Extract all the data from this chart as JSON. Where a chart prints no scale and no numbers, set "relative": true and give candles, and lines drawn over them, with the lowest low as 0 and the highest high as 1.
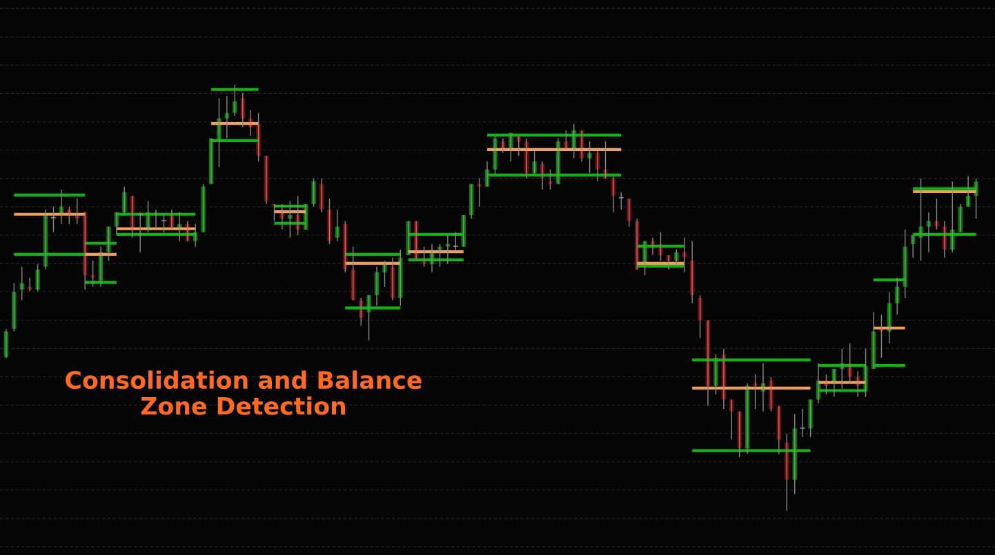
{
  "chart_data": {
    "type": "candlestick",
    "relative": true,
    "title": "Consolidation and Balance\nZone Detection",
    "grid": "y",
    "categories": [
      null,
      null,
      null,
      null,
      null,
      null,
      null,
      null,
      null,
      null,
      null,
      null,
      null,
      null,
      null,
      null,
      null,
      null,
      null,
      null,
      null,
      null,
      null,
      null,
      null,
      null,
      null,
      null,
      null,
      null,
      null,
      null,
      null,
      null,
      null,
      null,
      null,
      null,
      null,
      null,
      null,
      null,
      null,
      null,
      null,
      null,
      null,
      null,
      null,
      null,
      null,
      null,
      null,
      null,
      null,
      null,
      null,
      null,
      null,
      null,
      null,
      null,
      null,
      null,
      null,
      null,
      null,
      null,
      null,
      null,
      null,
      null,
      null,
      null,
      null,
      null,
      null,
      null,
      null,
      null,
      null,
      null,
      null,
      null,
      null,
      null,
      null,
      null,
      null,
      null,
      null,
      null,
      null,
      null,
      null,
      null,
      null,
      null,
      null,
      null,
      null,
      null,
      null,
      null,
      null,
      null,
      null,
      null,
      null,
      null,
      null,
      null,
      null,
      null,
      null,
      null,
      null,
      null,
      null,
      null,
      null,
      null,
      null,
      null
    ],
    "ohlc": [
      [
        0.361,
        0.427,
        0.358,
        0.421
      ],
      [
        0.427,
        0.534,
        0.421,
        0.513
      ],
      [
        0.519,
        0.573,
        0.494,
        0.534
      ],
      [
        0.526,
        0.547,
        0.515,
        0.519
      ],
      [
        0.519,
        0.579,
        0.515,
        0.566
      ],
      [
        0.573,
        0.707,
        0.566,
        0.694
      ],
      [
        0.688,
        0.714,
        0.654,
        0.688
      ],
      [
        0.697,
        0.754,
        0.673,
        0.714
      ],
      [
        0.707,
        0.714,
        0.673,
        0.697
      ],
      [
        0.697,
        0.733,
        0.673,
        0.686
      ],
      [
        0.701,
        0.701,
        0.519,
        0.553
      ],
      [
        0.553,
        0.587,
        0.526,
        0.547
      ],
      [
        0.54,
        0.62,
        0.526,
        0.607
      ],
      [
        0.607,
        0.667,
        0.587,
        0.667
      ],
      [
        0.667,
        0.701,
        0.649,
        0.701
      ],
      [
        0.701,
        0.761,
        0.697,
        0.748
      ],
      [
        0.739,
        0.739,
        0.641,
        0.663
      ],
      [
        0.696,
        0.701,
        0.607,
        0.696
      ],
      [
        0.663,
        0.727,
        0.654,
        0.701
      ],
      [
        0.701,
        0.707,
        0.662,
        0.696
      ],
      [
        0.681,
        0.696,
        0.654,
        0.681
      ],
      [
        0.694,
        0.707,
        0.662,
        0.663
      ],
      [
        0.663,
        0.701,
        0.633,
        0.673
      ],
      [
        0.673,
        0.68,
        0.633,
        0.633
      ],
      [
        0.633,
        0.673,
        0.62,
        0.654
      ],
      [
        0.654,
        0.767,
        0.654,
        0.761
      ],
      [
        0.767,
        0.874,
        0.767,
        0.874
      ],
      [
        0.869,
        0.968,
        0.807,
        0.921
      ],
      [
        0.921,
        0.974,
        0.874,
        0.934
      ],
      [
        0.934,
        1,
        0.927,
        0.961
      ],
      [
        0.968,
        0.981,
        0.9,
        0.921
      ],
      [
        0.921,
        0.94,
        0.88,
        0.9
      ],
      [
        0.908,
        0.934,
        0.82,
        0.833
      ],
      [
        0.833,
        0.833,
        0.72,
        0.727
      ],
      [
        0.72,
        0.72,
        0.68,
        0.715
      ],
      [
        0.707,
        0.72,
        0.66,
        0.686
      ],
      [
        0.686,
        0.727,
        0.641,
        0.694
      ],
      [
        0.694,
        0.739,
        0.647,
        0.66
      ],
      [
        0.66,
        0.72,
        0.66,
        0.72
      ],
      [
        0.72,
        0.78,
        0.714,
        0.773
      ],
      [
        0.767,
        0.78,
        0.701,
        0.707
      ],
      [
        0.707,
        0.733,
        0.626,
        0.633
      ],
      [
        0.641,
        0.707,
        0.633,
        0.667
      ],
      [
        0.673,
        0.68,
        0.56,
        0.566
      ],
      [
        0.566,
        0.62,
        0.494,
        0.494
      ],
      [
        0.494,
        0.5,
        0.434,
        0.453
      ],
      [
        0.466,
        0.506,
        0.4,
        0.506
      ],
      [
        0.506,
        0.573,
        0.481,
        0.56
      ],
      [
        0.56,
        0.587,
        0.526,
        0.581
      ],
      [
        0.573,
        0.594,
        0.494,
        0.5
      ],
      [
        0.5,
        0.613,
        0.481,
        0.594
      ],
      [
        0.6,
        0.68,
        0.6,
        0.68
      ],
      [
        0.68,
        0.68,
        0.591,
        0.591
      ],
      [
        0.586,
        0.62,
        0.573,
        0.579
      ],
      [
        0.579,
        0.626,
        0.56,
        0.613
      ],
      [
        0.613,
        0.626,
        0.573,
        0.62
      ],
      [
        0.62,
        0.646,
        0.579,
        0.626
      ],
      [
        0.621,
        0.654,
        0.61,
        0.621
      ],
      [
        0.62,
        0.694,
        0.62,
        0.694
      ],
      [
        0.694,
        0.767,
        0.686,
        0.767
      ],
      [
        0.767,
        0.78,
        0.714,
        0.761
      ],
      [
        0.761,
        0.82,
        0.761,
        0.801
      ],
      [
        0.801,
        0.879,
        0.79,
        0.874
      ],
      [
        0.867,
        0.874,
        0.84,
        0.85
      ],
      [
        0.85,
        0.887,
        0.82,
        0.887
      ],
      [
        0.879,
        0.879,
        0.833,
        0.867
      ],
      [
        0.867,
        0.874,
        0.78,
        0.793
      ],
      [
        0.793,
        0.845,
        0.79,
        0.82
      ],
      [
        0.814,
        0.82,
        0.754,
        0.78
      ],
      [
        0.773,
        0.801,
        0.754,
        0.767
      ],
      [
        0.767,
        0.874,
        0.767,
        0.867
      ],
      [
        0.867,
        0.893,
        0.85,
        0.85
      ],
      [
        0.85,
        0.908,
        0.827,
        0.893
      ],
      [
        0.893,
        0.893,
        0.82,
        0.827
      ],
      [
        0.827,
        0.867,
        0.793,
        0.84
      ],
      [
        0.84,
        0.845,
        0.773,
        0.801
      ],
      [
        0.801,
        0.867,
        0.78,
        0.78
      ],
      [
        0.78,
        0.785,
        0.701,
        0.739
      ],
      [
        0.735,
        0.748,
        0.707,
        0.735
      ],
      [
        0.733,
        0.733,
        0.667,
        0.68
      ],
      [
        0.68,
        0.686,
        0.566,
        0.566
      ],
      [
        0.574,
        0.633,
        0.553,
        0.633
      ],
      [
        0.633,
        0.641,
        0.6,
        0.623
      ],
      [
        0.626,
        0.654,
        0.587,
        0.6
      ],
      [
        0.6,
        0.6,
        0.566,
        0.587
      ],
      [
        0.587,
        0.613,
        0.576,
        0.607
      ],
      [
        0.607,
        0.641,
        0.56,
        0.594
      ],
      [
        0.587,
        0.633,
        0.487,
        0.506
      ],
      [
        0.5,
        0.506,
        0.406,
        0.447
      ],
      [
        0.447,
        0.447,
        0.246,
        0.293
      ],
      [
        0.293,
        0.367,
        0.273,
        0.359
      ],
      [
        0.367,
        0.38,
        0.239,
        0.261
      ],
      [
        0.261,
        0.261,
        0.167,
        0.233
      ],
      [
        0.233,
        0.233,
        0.126,
        0.146
      ],
      [
        0.146,
        0.299,
        0.133,
        0.293
      ],
      [
        0.299,
        0.32,
        0.239,
        0.293
      ],
      [
        0.28,
        0.346,
        0.233,
        0.299
      ],
      [
        0.306,
        0.314,
        0.233,
        0.239
      ],
      [
        0.246,
        0.246,
        0.133,
        0.167
      ],
      [
        0.16,
        0.18,
        0,
        0.073
      ],
      [
        0.073,
        0.227,
        0.039,
        0.193
      ],
      [
        0.194,
        0.239,
        0.173,
        0.194
      ],
      [
        0.193,
        0.261,
        0.173,
        0.261
      ],
      [
        0.261,
        0.346,
        0.252,
        0.306
      ],
      [
        0.306,
        0.32,
        0.273,
        0.293
      ],
      [
        0.298,
        0.333,
        0.267,
        0.333
      ],
      [
        0.333,
        0.38,
        0.286,
        0.346
      ],
      [
        0.346,
        0.393,
        0.299,
        0.314
      ],
      [
        0.314,
        0.327,
        0.267,
        0.293
      ],
      [
        0.28,
        0.38,
        0.267,
        0.34
      ],
      [
        0.333,
        0.466,
        0.333,
        0.421
      ],
      [
        0.427,
        0.46,
        0.359,
        0.421
      ],
      [
        0.421,
        0.513,
        0.393,
        0.487
      ],
      [
        0.487,
        0.547,
        0.46,
        0.526
      ],
      [
        0.526,
        0.66,
        0.5,
        0.62
      ],
      [
        0.626,
        0.647,
        0.594,
        0.647
      ],
      [
        0.641,
        0.78,
        0.587,
        0.667
      ],
      [
        0.667,
        0.701,
        0.607,
        0.68
      ],
      [
        0.68,
        0.733,
        0.66,
        0.667
      ],
      [
        0.667,
        0.68,
        0.594,
        0.613
      ],
      [
        0.613,
        0.773,
        0.607,
        0.66
      ],
      [
        0.654,
        0.72,
        0.654,
        0.714
      ],
      [
        0.714,
        0.786,
        0.714,
        0.739
      ],
      [
        0.739,
        0.78,
        0.686,
        0.773
      ]
    ],
    "colors": [
      "#088008",
      "#088008",
      "#088008",
      "#800808",
      "#088008",
      "#088008",
      "#808080",
      "#088008",
      "#800808",
      "#800808",
      "#800808",
      "#800808",
      "#088008",
      "#088008",
      "#088008",
      "#088008",
      "#800808",
      "#808080",
      "#088008",
      "#800808",
      "#808080",
      "#800808",
      "#088008",
      "#800808",
      "#088008",
      "#088008",
      "#088008",
      "#088008",
      "#088008",
      "#088008",
      "#800808",
      "#800808",
      "#800808",
      "#800808",
      "#800808",
      "#800808",
      "#088008",
      "#800808",
      "#088008",
      "#088008",
      "#800808",
      "#800808",
      "#088008",
      "#800808",
      "#800808",
      "#800808",
      "#088008",
      "#088008",
      "#088008",
      "#800808",
      "#088008",
      "#088008",
      "#800808",
      "#800808",
      "#088008",
      "#088008",
      "#088008",
      "#808080",
      "#088008",
      "#088008",
      "#800808",
      "#088008",
      "#088008",
      "#800808",
      "#088008",
      "#800808",
      "#800808",
      "#088008",
      "#800808",
      "#800808",
      "#088008",
      "#800808",
      "#088008",
      "#800808",
      "#088008",
      "#800808",
      "#800808",
      "#800808",
      "#808080",
      "#800808",
      "#800808",
      "#088008",
      "#800808",
      "#800808",
      "#800808",
      "#088008",
      "#800808",
      "#800808",
      "#800808",
      "#800808",
      "#088008",
      "#800808",
      "#800808",
      "#800808",
      "#088008",
      "#800808",
      "#088008",
      "#800808",
      "#800808",
      "#800808",
      "#088008",
      "#808080",
      "#088008",
      "#088008",
      "#800808",
      "#088008",
      "#088008",
      "#800808",
      "#800808",
      "#088008",
      "#088008",
      "#800808",
      "#088008",
      "#088008",
      "#088008",
      "#088008",
      "#088008",
      "#088008",
      "#800808",
      "#800808",
      "#088008",
      "#088008",
      "#088008",
      "#088008"
    ],
    "series": [
      {
        "type": "line",
        "color": "#10b410",
        "values": [
          null,
          0.741,
          0.741,
          0.741,
          0.741,
          0.741,
          0.741,
          0.741,
          0.741,
          0.741,
          0.741,
          null,
          null,
          null,
          0.696,
          0.696,
          0.696,
          0.696,
          0.696,
          0.696,
          0.696,
          0.696,
          0.696,
          0.696,
          0.696,
          null,
          null,
          null,
          null,
          null,
          null,
          null,
          null,
          null,
          0.715,
          0.715,
          0.715,
          0.715,
          0.715,
          null,
          null,
          null,
          null,
          null,
          null,
          null,
          null,
          null,
          null,
          null,
          null,
          0.649,
          0.649,
          0.649,
          0.649,
          0.649,
          0.649,
          0.649,
          0.649,
          null,
          null,
          null,
          null,
          null,
          null,
          null,
          null,
          null,
          null,
          null,
          null,
          null,
          null,
          null,
          null,
          null,
          null,
          null,
          null,
          null,
          0.621,
          0.621,
          0.621,
          0.621,
          0.621,
          0.621,
          0.621,
          null,
          null,
          null,
          null,
          null,
          null,
          null,
          null,
          null,
          null,
          null,
          null,
          null,
          null,
          null,
          null,
          0.341,
          0.341,
          0.341,
          0.341,
          0.341,
          0.341,
          0.341,
          null,
          null,
          null,
          null,
          null,
          0.756,
          0.756,
          0.756,
          0.756,
          0.756,
          0.756,
          0.756,
          0.756,
          0.756
        ]
      },
      {
        "type": "line",
        "color": "#f0a05a",
        "values": [
          null,
          0.696,
          0.696,
          0.696,
          0.696,
          0.696,
          0.696,
          0.696,
          0.696,
          0.696,
          0.696,
          null,
          null,
          null,
          0.662,
          0.662,
          0.662,
          0.662,
          0.662,
          0.662,
          0.662,
          0.662,
          0.662,
          0.662,
          0.662,
          null,
          null,
          null,
          null,
          null,
          null,
          null,
          null,
          null,
          0.702,
          0.702,
          0.702,
          0.702,
          0.702,
          null,
          null,
          null,
          null,
          null,
          null,
          null,
          null,
          null,
          null,
          null,
          null,
          0.608,
          0.608,
          0.608,
          0.608,
          0.608,
          0.608,
          0.608,
          0.608,
          null,
          null,
          null,
          null,
          null,
          null,
          null,
          null,
          null,
          null,
          null,
          null,
          null,
          null,
          null,
          null,
          null,
          null,
          null,
          null,
          null,
          0.581,
          0.581,
          0.581,
          0.581,
          0.581,
          0.581,
          0.581,
          null,
          null,
          null,
          null,
          null,
          null,
          null,
          null,
          null,
          null,
          null,
          null,
          null,
          null,
          null,
          null,
          0.301,
          0.301,
          0.301,
          0.301,
          0.301,
          0.301,
          0.301,
          null,
          null,
          null,
          null,
          null,
          0.749,
          0.749,
          0.749,
          0.749,
          0.749,
          0.749,
          0.749,
          0.749,
          0.749
        ]
      },
      {
        "type": "line",
        "color": "#10b410",
        "values": [
          null,
          0.602,
          0.602,
          0.602,
          0.602,
          0.602,
          0.602,
          0.602,
          0.602,
          0.602,
          0.602,
          null,
          null,
          null,
          0.649,
          0.649,
          0.649,
          0.649,
          0.649,
          0.649,
          0.649,
          0.649,
          0.649,
          0.649,
          0.649,
          null,
          null,
          null,
          null,
          null,
          null,
          null,
          null,
          null,
          0.675,
          0.675,
          0.675,
          0.675,
          0.675,
          null,
          null,
          null,
          null,
          null,
          null,
          null,
          null,
          null,
          null,
          null,
          null,
          0.589,
          0.589,
          0.589,
          0.589,
          0.589,
          0.589,
          0.589,
          0.589,
          null,
          null,
          null,
          null,
          null,
          null,
          null,
          null,
          null,
          null,
          null,
          null,
          null,
          null,
          null,
          null,
          null,
          null,
          null,
          null,
          null,
          0.574,
          0.574,
          0.574,
          0.574,
          0.574,
          0.574,
          0.574,
          null,
          null,
          null,
          null,
          null,
          null,
          null,
          null,
          null,
          null,
          null,
          null,
          null,
          null,
          null,
          null,
          0.282,
          0.282,
          0.282,
          0.282,
          0.282,
          0.282,
          0.282,
          null,
          null,
          null,
          null,
          null,
          0.649,
          0.649,
          0.649,
          0.649,
          0.649,
          0.649,
          0.649,
          0.649,
          0.649
        ]
      },
      {
        "type": "line",
        "color": "#10b410",
        "values": [
          null,
          null,
          null,
          null,
          null,
          null,
          null,
          null,
          null,
          null,
          0.628,
          0.628,
          0.628,
          0.628,
          0.628,
          null,
          null,
          null,
          null,
          null,
          null,
          null,
          null,
          null,
          null,
          null,
          0.989,
          0.989,
          0.989,
          0.989,
          0.989,
          0.989,
          0.989,
          null,
          null,
          null,
          null,
          null,
          null,
          null,
          null,
          null,
          null,
          0.602,
          0.602,
          0.602,
          0.602,
          0.602,
          0.602,
          0.602,
          0.602,
          null,
          null,
          null,
          null,
          null,
          null,
          null,
          null,
          null,
          null,
          0.882,
          0.882,
          0.882,
          0.882,
          0.882,
          0.882,
          0.882,
          0.882,
          0.882,
          0.882,
          0.882,
          0.882,
          0.882,
          0.882,
          0.882,
          0.882,
          0.882,
          0.882,
          null,
          null,
          null,
          null,
          null,
          null,
          null,
          null,
          0.354,
          0.354,
          0.354,
          0.354,
          0.354,
          0.354,
          0.354,
          0.354,
          0.354,
          0.354,
          0.354,
          0.354,
          0.354,
          0.354,
          0.354,
          0.354,
          null,
          null,
          null,
          null,
          null,
          null,
          null,
          0.542,
          0.542,
          0.542,
          0.542,
          0.542,
          null,
          null,
          null,
          null,
          null,
          null,
          null,
          null,
          null
        ]
      },
      {
        "type": "line",
        "color": "#f0a05a",
        "values": [
          null,
          null,
          null,
          null,
          null,
          null,
          null,
          null,
          null,
          null,
          0.602,
          0.602,
          0.602,
          0.602,
          0.602,
          null,
          null,
          null,
          null,
          null,
          null,
          null,
          null,
          null,
          null,
          null,
          0.909,
          0.909,
          0.909,
          0.909,
          0.909,
          0.909,
          0.909,
          null,
          null,
          null,
          null,
          null,
          null,
          null,
          null,
          null,
          null,
          0.581,
          0.581,
          0.581,
          0.581,
          0.581,
          0.581,
          0.581,
          0.581,
          null,
          null,
          null,
          null,
          null,
          null,
          null,
          null,
          null,
          null,
          0.848,
          0.848,
          0.848,
          0.848,
          0.848,
          0.848,
          0.848,
          0.848,
          0.848,
          0.848,
          0.848,
          0.848,
          0.848,
          0.848,
          0.848,
          0.848,
          0.848,
          0.848,
          null,
          null,
          null,
          null,
          null,
          null,
          null,
          null,
          0.288,
          0.288,
          0.288,
          0.288,
          0.288,
          0.288,
          0.288,
          0.288,
          0.288,
          0.288,
          0.288,
          0.288,
          0.288,
          0.288,
          0.288,
          0.288,
          null,
          null,
          null,
          null,
          null,
          null,
          null,
          0.429,
          0.429,
          0.429,
          0.429,
          0.429,
          null,
          null,
          null,
          null,
          null,
          null,
          null,
          null,
          null
        ]
      },
      {
        "type": "line",
        "color": "#10b410",
        "values": [
          null,
          null,
          null,
          null,
          null,
          null,
          null,
          null,
          null,
          null,
          0.536,
          0.536,
          0.536,
          0.536,
          0.536,
          null,
          null,
          null,
          null,
          null,
          null,
          null,
          null,
          null,
          null,
          null,
          0.869,
          0.869,
          0.869,
          0.869,
          0.869,
          0.869,
          0.869,
          null,
          null,
          null,
          null,
          null,
          null,
          null,
          null,
          null,
          null,
          0.476,
          0.476,
          0.476,
          0.476,
          0.476,
          0.476,
          0.476,
          0.476,
          null,
          null,
          null,
          null,
          null,
          null,
          null,
          null,
          null,
          null,
          0.788,
          0.788,
          0.788,
          0.788,
          0.788,
          0.788,
          0.788,
          0.788,
          0.788,
          0.788,
          0.788,
          0.788,
          0.788,
          0.788,
          0.788,
          0.788,
          0.788,
          0.788,
          null,
          null,
          null,
          null,
          null,
          null,
          null,
          null,
          0.141,
          0.141,
          0.141,
          0.141,
          0.141,
          0.141,
          0.141,
          0.141,
          0.141,
          0.141,
          0.141,
          0.141,
          0.141,
          0.141,
          0.141,
          0.141,
          null,
          null,
          null,
          null,
          null,
          null,
          null,
          0.341,
          0.341,
          0.341,
          0.341,
          0.341,
          null,
          null,
          null,
          null,
          null,
          null,
          null,
          null,
          null
        ]
      }
    ]
  }
}
